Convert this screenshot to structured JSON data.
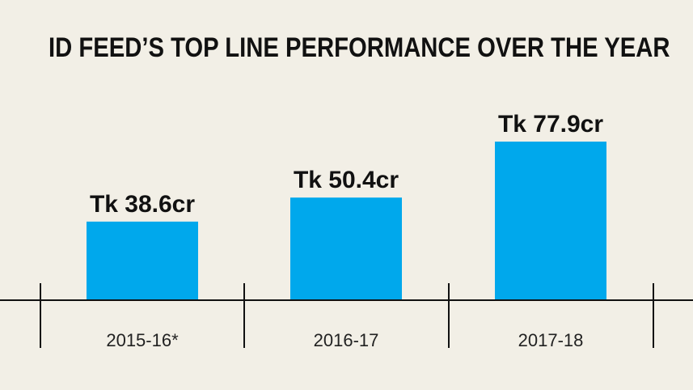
{
  "chart_data": {
    "type": "bar",
    "title": "ID FEED’S TOP LINE PERFORMANCE OVER THE YEAR",
    "categories": [
      "2015-16*",
      "2016-17",
      "2017-18"
    ],
    "values": [
      38.6,
      50.4,
      77.9
    ],
    "data_labels": [
      "Tk 38.6cr",
      "Tk 50.4cr",
      "Tk 77.9cr"
    ],
    "xlabel": "",
    "ylabel": "",
    "grid": false,
    "legend": "none",
    "bar_color": "#00a8ec",
    "axis_color": "#111111"
  }
}
